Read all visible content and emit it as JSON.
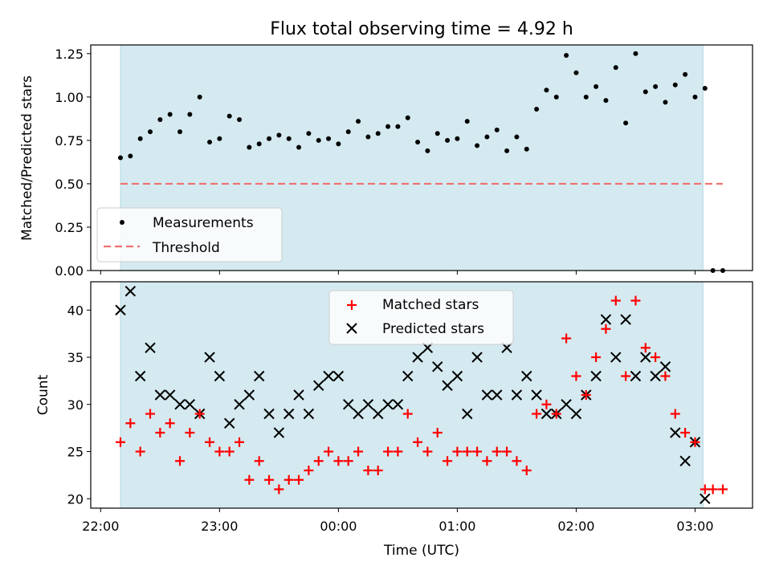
{
  "chart_data": [
    {
      "type": "scatter",
      "title": "Flux total observing time = 4.92 h",
      "xlabel": "",
      "ylabel": "Matched/Predicted stars",
      "ylim": [
        0,
        1.3
      ],
      "yticks": [
        "0.00",
        "0.25",
        "0.50",
        "0.75",
        "1.00",
        "1.25"
      ],
      "shaded_region": {
        "start": "22:10",
        "end": "03:04",
        "color": "#d4eaf0"
      },
      "threshold": {
        "name": "Threshold",
        "value": 0.5,
        "x_start": "22:10",
        "x_end": "03:14",
        "color": "#f07070",
        "style": "dashed"
      },
      "legend": {
        "placement": "lower-left",
        "entries": [
          "Measurements",
          "Threshold"
        ]
      },
      "series": [
        {
          "name": "Measurements",
          "marker": "dot",
          "color": "#000000",
          "x": [
            "22:10",
            "22:15",
            "22:20",
            "22:25",
            "22:30",
            "22:35",
            "22:40",
            "22:45",
            "22:50",
            "22:55",
            "23:00",
            "23:05",
            "23:10",
            "23:15",
            "23:20",
            "23:25",
            "23:30",
            "23:35",
            "23:40",
            "23:45",
            "23:50",
            "23:55",
            "00:00",
            "00:05",
            "00:10",
            "00:15",
            "00:20",
            "00:25",
            "00:30",
            "00:35",
            "00:40",
            "00:45",
            "00:50",
            "00:55",
            "01:00",
            "01:05",
            "01:10",
            "01:15",
            "01:20",
            "01:25",
            "01:30",
            "01:35",
            "01:40",
            "01:45",
            "01:50",
            "01:55",
            "02:00",
            "02:05",
            "02:10",
            "02:15",
            "02:20",
            "02:25",
            "02:30",
            "02:35",
            "02:40",
            "02:45",
            "02:50",
            "02:55",
            "03:00",
            "03:05",
            "03:09",
            "03:14"
          ],
          "y": [
            0.65,
            0.66,
            0.76,
            0.8,
            0.87,
            0.9,
            0.8,
            0.9,
            1.0,
            0.74,
            0.76,
            0.89,
            0.87,
            0.71,
            0.73,
            0.76,
            0.78,
            0.76,
            0.71,
            0.79,
            0.75,
            0.76,
            0.73,
            0.8,
            0.86,
            0.77,
            0.79,
            0.83,
            0.83,
            0.88,
            0.74,
            0.69,
            0.79,
            0.75,
            0.76,
            0.86,
            0.72,
            0.77,
            0.81,
            0.69,
            0.77,
            0.7,
            0.93,
            1.04,
            1.0,
            1.24,
            1.14,
            1.0,
            1.06,
            0.98,
            1.17,
            0.85,
            1.25,
            1.03,
            1.06,
            0.97,
            1.07,
            1.13,
            1.0,
            1.05,
            0.0,
            0.0
          ]
        }
      ]
    },
    {
      "type": "scatter",
      "title": "",
      "xlabel": "Time (UTC)",
      "ylabel": "Count",
      "ylim": [
        19,
        43
      ],
      "yticks": [
        "20",
        "25",
        "30",
        "35",
        "40"
      ],
      "xticks": [
        "22:00",
        "23:00",
        "00:00",
        "01:00",
        "02:00",
        "03:00"
      ],
      "xlim": [
        "21:55",
        "03:29"
      ],
      "shaded_region": {
        "start": "22:10",
        "end": "03:04",
        "color": "#d4eaf0"
      },
      "legend": {
        "placement": "upper-center",
        "entries": [
          "Matched stars",
          "Predicted stars"
        ]
      },
      "series": [
        {
          "name": "Matched stars",
          "marker": "plus",
          "color": "#ff0000",
          "x": [
            "22:10",
            "22:15",
            "22:20",
            "22:25",
            "22:30",
            "22:35",
            "22:40",
            "22:45",
            "22:50",
            "22:55",
            "23:00",
            "23:05",
            "23:10",
            "23:15",
            "23:20",
            "23:25",
            "23:30",
            "23:35",
            "23:40",
            "23:45",
            "23:50",
            "23:55",
            "00:00",
            "00:05",
            "00:10",
            "00:15",
            "00:20",
            "00:25",
            "00:30",
            "00:35",
            "00:40",
            "00:45",
            "00:50",
            "00:55",
            "01:00",
            "01:05",
            "01:10",
            "01:15",
            "01:20",
            "01:25",
            "01:30",
            "01:35",
            "01:40",
            "01:45",
            "01:50",
            "01:55",
            "02:00",
            "02:05",
            "02:10",
            "02:15",
            "02:20",
            "02:25",
            "02:30",
            "02:35",
            "02:40",
            "02:45",
            "02:50",
            "02:55",
            "03:00",
            "03:05",
            "03:09",
            "03:14"
          ],
          "y": [
            26,
            28,
            25,
            29,
            27,
            28,
            24,
            27,
            29,
            26,
            25,
            25,
            26,
            22,
            24,
            22,
            21,
            22,
            22,
            23,
            24,
            25,
            24,
            24,
            25,
            23,
            23,
            25,
            25,
            29,
            26,
            25,
            27,
            24,
            25,
            25,
            25,
            24,
            25,
            25,
            24,
            23,
            29,
            30,
            29,
            37,
            33,
            31,
            35,
            38,
            41,
            33,
            41,
            36,
            35,
            33,
            29,
            27,
            26,
            21,
            21,
            21
          ]
        },
        {
          "name": "Predicted stars",
          "marker": "x",
          "color": "#000000",
          "x": [
            "22:10",
            "22:15",
            "22:20",
            "22:25",
            "22:30",
            "22:35",
            "22:40",
            "22:45",
            "22:50",
            "22:55",
            "23:00",
            "23:05",
            "23:10",
            "23:15",
            "23:20",
            "23:25",
            "23:30",
            "23:35",
            "23:40",
            "23:45",
            "23:50",
            "23:55",
            "00:00",
            "00:05",
            "00:10",
            "00:15",
            "00:20",
            "00:25",
            "00:30",
            "00:35",
            "00:40",
            "00:45",
            "00:50",
            "00:55",
            "01:00",
            "01:05",
            "01:10",
            "01:15",
            "01:20",
            "01:25",
            "01:30",
            "01:35",
            "01:40",
            "01:45",
            "01:50",
            "01:55",
            "02:00",
            "02:05",
            "02:10",
            "02:15",
            "02:20",
            "02:25",
            "02:30",
            "02:35",
            "02:40",
            "02:45",
            "02:50",
            "02:55",
            "03:00",
            "03:05"
          ],
          "y": [
            40,
            42,
            33,
            36,
            31,
            31,
            30,
            30,
            29,
            35,
            33,
            28,
            30,
            31,
            33,
            29,
            27,
            29,
            31,
            29,
            32,
            33,
            33,
            30,
            29,
            30,
            29,
            30,
            30,
            33,
            35,
            36,
            34,
            32,
            33,
            29,
            35,
            31,
            31,
            36,
            31,
            33,
            31,
            29,
            29,
            30,
            29,
            31,
            33,
            39,
            35,
            39,
            33,
            35,
            33,
            34,
            27,
            24,
            26,
            20
          ]
        }
      ]
    }
  ]
}
